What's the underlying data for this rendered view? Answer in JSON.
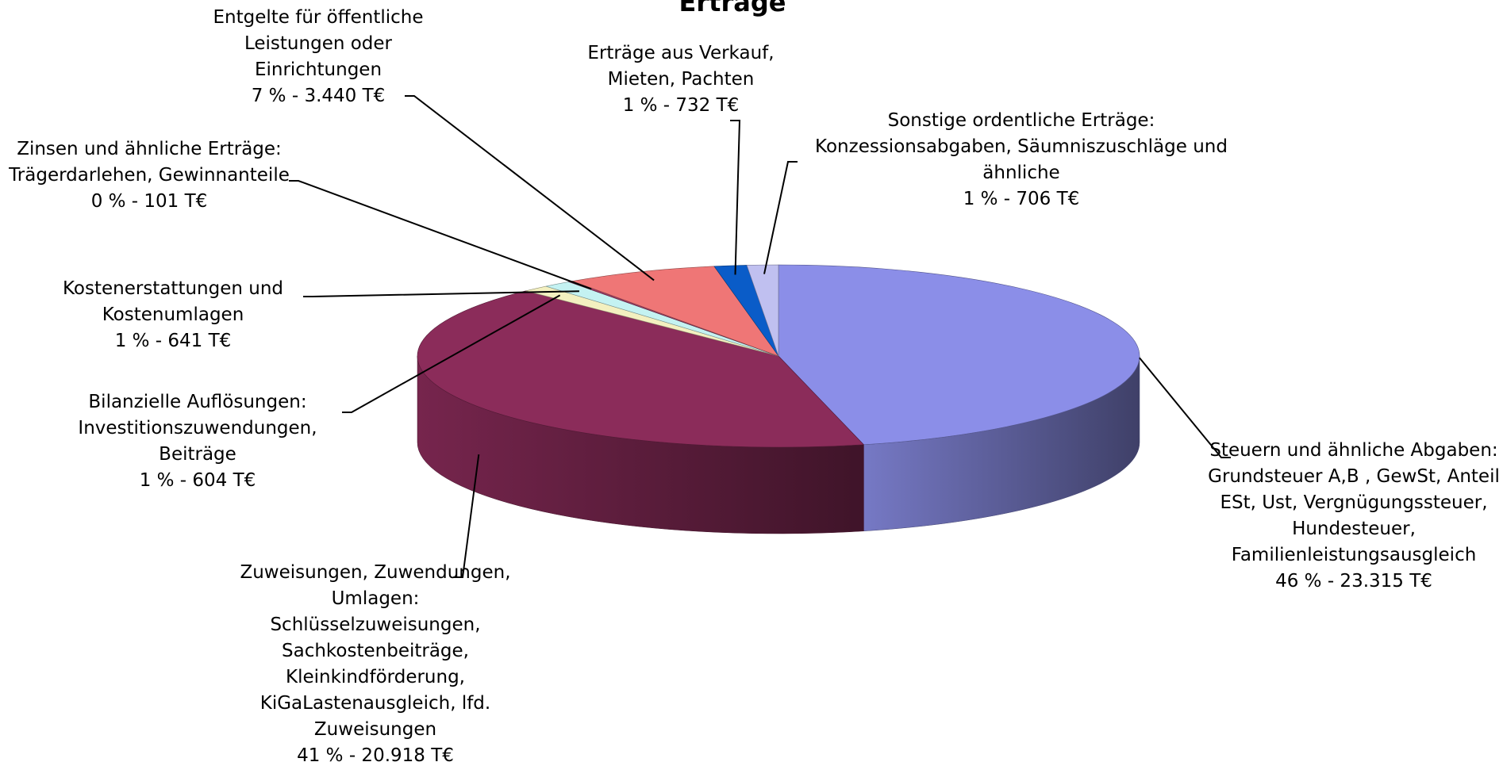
{
  "chart_data": {
    "type": "pie3d",
    "title": "Erträge",
    "categories": [
      "Steuern und ähnliche Abgaben: Grundsteuer A,B , GewSt, Anteil ESt, Ust, Vergnügungssteuer, Hundesteuer, Familienleistungsausgleich",
      "Zuweisungen, Zuwendungen, Umlagen: Schlüsselzuweisungen, Sachkostenbeiträge, Kleinkindförderung, KiGaLastenausgleich, lfd. Zuweisungen",
      "Bilanzielle Auflösungen: Investitionszuwendungen, Beiträge",
      "Kostenerstattungen und Kostenumlagen",
      "Zinsen und ähnliche Erträge: Trägerdarlehen, Gewinnanteile",
      "Entgelte für öffentliche Leistungen oder Einrichtungen",
      "Erträge aus Verkauf, Mieten, Pachten",
      "Sonstige ordentliche Erträge: Konzessionsabgaben, Säumniszuschläge und ähnliche"
    ],
    "values": [
      23315,
      20918,
      604,
      641,
      101,
      3440,
      732,
      706
    ],
    "value_labels": [
      "46 % - 23.315 T€",
      "41 % - 20.918 T€",
      "1 % - 604 T€",
      "1 % - 641 T€",
      "0 % - 101 T€",
      "7 % - 3.440 T€",
      "1 % - 732 T€",
      "1 % - 706 T€"
    ],
    "colors": [
      "#8b8ee8",
      "#8b2c5a",
      "#f3f0c0",
      "#c4f2f2",
      "#9a3a66",
      "#ef7676",
      "#0a5cc8",
      "#c0c0f0"
    ]
  }
}
